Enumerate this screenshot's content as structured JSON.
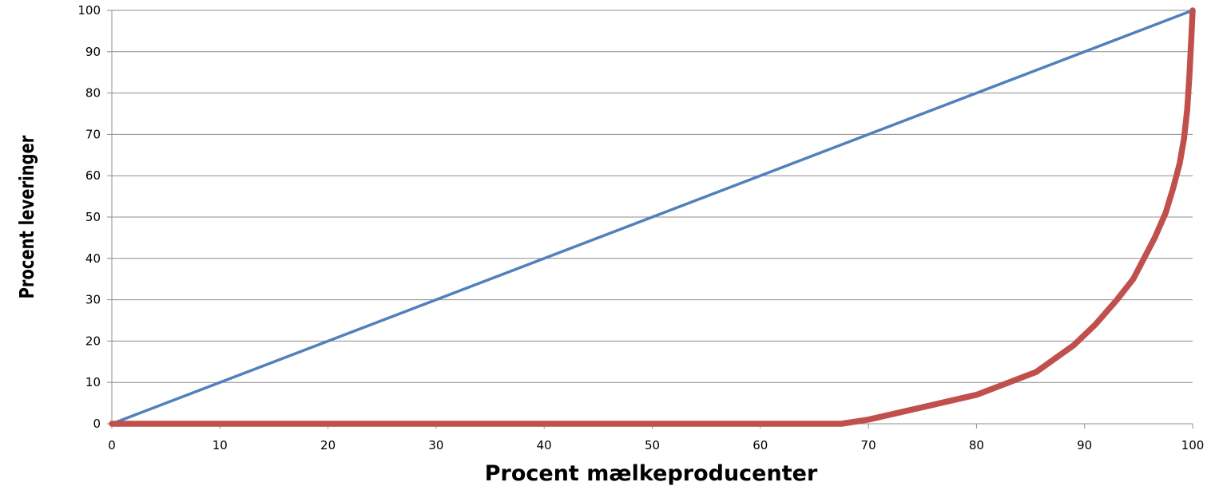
{
  "chart_data": {
    "type": "line",
    "title": "",
    "xlabel": "Procent mælkeproducenter",
    "ylabel": "Procent leveringer",
    "xlim": [
      0,
      100
    ],
    "ylim": [
      0,
      100
    ],
    "x_ticks": [
      0,
      10,
      20,
      30,
      40,
      50,
      60,
      70,
      80,
      90,
      100
    ],
    "y_ticks": [
      0,
      10,
      20,
      30,
      40,
      50,
      60,
      70,
      80,
      90,
      100
    ],
    "grid": {
      "horizontal": true,
      "vertical": false
    },
    "legend": "none",
    "series": [
      {
        "color": "#4f81bd",
        "x": [
          0,
          100
        ],
        "y": [
          0,
          100
        ]
      },
      {
        "color": "#c0504d",
        "x": [
          0,
          67.5,
          70,
          75,
          80,
          83,
          85.5,
          89,
          91,
          93,
          94.5,
          95.5,
          96.5,
          97.5,
          98.2,
          98.8,
          99.2,
          99.5,
          99.7,
          99.85,
          100
        ],
        "y": [
          0,
          0,
          1,
          4,
          7,
          10,
          12.5,
          19,
          24,
          30,
          35,
          40,
          45,
          51,
          57,
          63,
          69,
          76,
          84,
          92,
          100
        ]
      }
    ]
  }
}
